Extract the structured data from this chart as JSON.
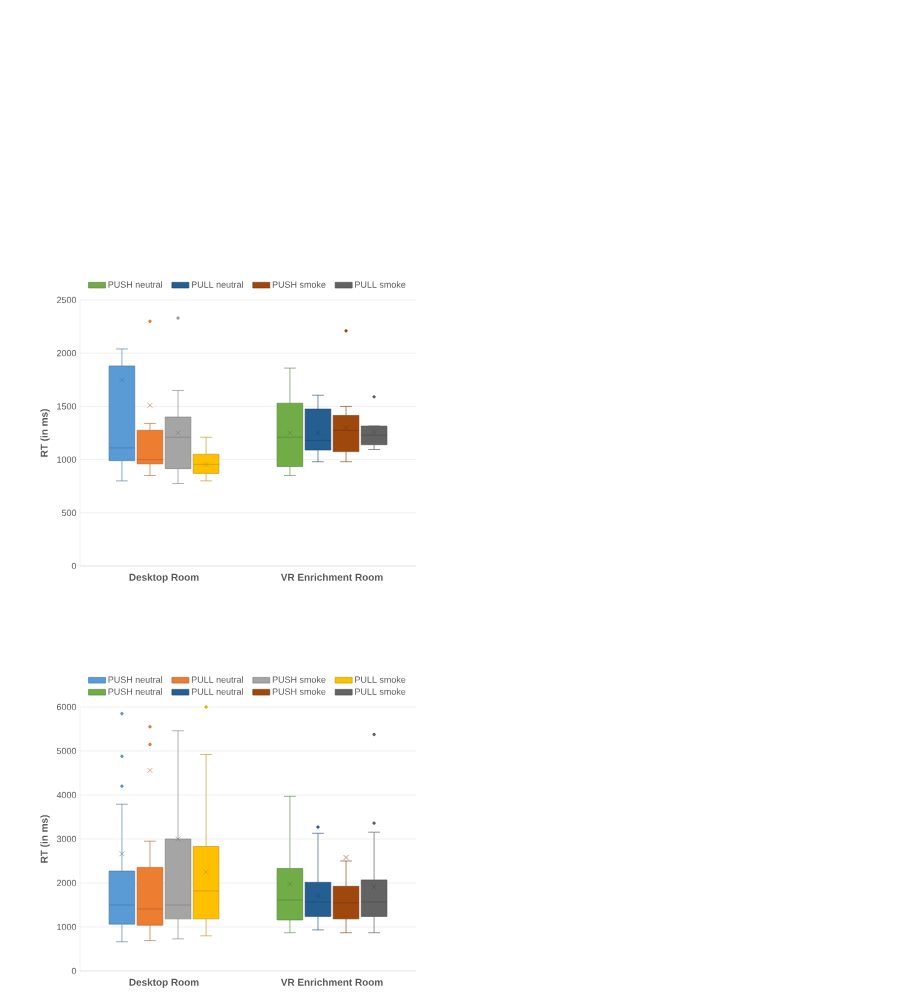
{
  "chart_data": [
    {
      "type": "box",
      "ylabel": "RT (in ms)",
      "categories": [
        "Desktop Room",
        "VR Enrichment Room"
      ],
      "ylim": [
        0,
        2500
      ],
      "yticks": [
        0,
        500,
        1000,
        1500,
        2000,
        2500
      ],
      "grid": "y",
      "legend": "top",
      "series": [
        {
          "color": "#5b9bd5",
          "boxes": [
            {
              "low": 800,
              "q1": 990,
              "median": 1110,
              "q3": 1880,
              "high": 2040,
              "mean": 1750
            },
            null
          ]
        },
        {
          "color": "#ed7d31",
          "boxes": [
            {
              "low": 850,
              "q1": 960,
              "median": 1000,
              "q3": 1275,
              "high": 1340,
              "mean": 1510,
              "outliers": [
                2300
              ]
            },
            null
          ]
        },
        {
          "color": "#a5a5a5",
          "boxes": [
            {
              "low": 775,
              "q1": 915,
              "median": 1210,
              "q3": 1400,
              "high": 1650,
              "mean": 1250,
              "outliers": [
                2330
              ]
            },
            null
          ]
        },
        {
          "color": "#ffc000",
          "boxes": [
            {
              "low": 800,
              "q1": 870,
              "median": 955,
              "q3": 1050,
              "high": 1210,
              "mean": 955
            },
            null
          ]
        },
        {
          "name": "PUSH neutral",
          "color": "#70ad47",
          "boxes": [
            null,
            {
              "low": 850,
              "q1": 935,
              "median": 1210,
              "q3": 1530,
              "high": 1860,
              "mean": 1250
            }
          ]
        },
        {
          "name": "PULL neutral",
          "color": "#255e91",
          "boxes": [
            null,
            {
              "low": 980,
              "q1": 1090,
              "median": 1180,
              "q3": 1475,
              "high": 1605,
              "mean": 1250
            }
          ]
        },
        {
          "name": "PUSH smoke",
          "color": "#9e480e",
          "boxes": [
            null,
            {
              "low": 980,
              "q1": 1075,
              "median": 1275,
              "q3": 1415,
              "high": 1500,
              "mean": 1300,
              "outliers": [
                2210
              ]
            }
          ]
        },
        {
          "name": "PULL smoke",
          "color": "#636363",
          "boxes": [
            null,
            {
              "low": 1095,
              "q1": 1140,
              "median": 1230,
              "q3": 1315,
              "high": 1315,
              "mean": 1260,
              "outliers": [
                1590
              ]
            }
          ]
        }
      ]
    },
    {
      "type": "box",
      "ylabel": "RT (in ms)",
      "categories": [
        "Desktop Room",
        "VR Enrichment Room"
      ],
      "ylim": [
        0,
        6000
      ],
      "yticks": [
        0,
        1000,
        2000,
        3000,
        4000,
        5000,
        6000
      ],
      "grid": "y",
      "legend": "top",
      "series": [
        {
          "name": "PUSH neutral",
          "color": "#5b9bd5",
          "boxes": [
            {
              "low": 665,
              "q1": 1065,
              "median": 1500,
              "q3": 2270,
              "high": 3790,
              "mean": 2665,
              "outliers": [
                4200,
                4880,
                5850
              ]
            },
            null
          ]
        },
        {
          "name": "PULL neutral",
          "color": "#ed7d31",
          "boxes": [
            {
              "low": 690,
              "q1": 1040,
              "median": 1410,
              "q3": 2355,
              "high": 2950,
              "mean": 4560,
              "outliers": [
                5150,
                5550
              ]
            },
            null
          ]
        },
        {
          "name": "PUSH smoke",
          "color": "#a5a5a5",
          "boxes": [
            {
              "low": 730,
              "q1": 1185,
              "median": 1500,
              "q3": 3000,
              "high": 5460,
              "mean": 3000
            },
            null
          ]
        },
        {
          "name": "PULL smoke",
          "color": "#ffc000",
          "boxes": [
            {
              "low": 800,
              "q1": 1185,
              "median": 1820,
              "q3": 2830,
              "high": 4920,
              "mean": 2250,
              "outliers": [
                6000
              ]
            },
            null
          ]
        },
        {
          "name": "PUSH neutral",
          "color": "#70ad47",
          "boxes": [
            null,
            {
              "low": 870,
              "q1": 1160,
              "median": 1615,
              "q3": 2330,
              "high": 3970,
              "mean": 1980
            }
          ]
        },
        {
          "name": "PULL neutral",
          "color": "#255e91",
          "boxes": [
            null,
            {
              "low": 935,
              "q1": 1240,
              "median": 1570,
              "q3": 2015,
              "high": 3130,
              "mean": 1705,
              "outliers": [
                3270
              ]
            }
          ]
        },
        {
          "name": "PUSH smoke",
          "color": "#9e480e",
          "boxes": [
            null,
            {
              "low": 870,
              "q1": 1185,
              "median": 1550,
              "q3": 1925,
              "high": 2500,
              "mean": 2580
            }
          ]
        },
        {
          "name": "PULL smoke",
          "color": "#636363",
          "boxes": [
            null,
            {
              "low": 870,
              "q1": 1240,
              "median": 1570,
              "q3": 2070,
              "high": 3155,
              "mean": 1910,
              "outliers": [
                3360,
                5375
              ]
            }
          ]
        }
      ]
    }
  ]
}
